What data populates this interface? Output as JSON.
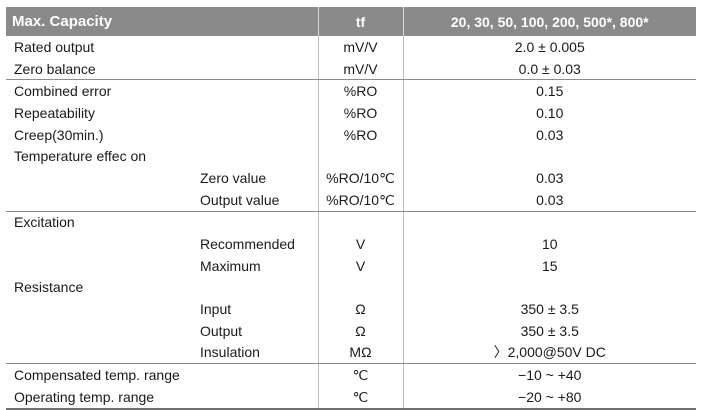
{
  "header": {
    "label": "Max. Capacity",
    "unit": "tf",
    "value": "20, 30, 50, 100, 200, 500*, 800*"
  },
  "rows": [
    {
      "label": "Rated output",
      "unit": "mV/V",
      "value": "2.0 ± 0.005"
    },
    {
      "label": "Zero balance",
      "unit": "mV/V",
      "value": "0.0 ± 0.03"
    },
    {
      "label": "Combined error",
      "unit": "%RO",
      "value": "0.15"
    },
    {
      "label": "Repeatability",
      "unit": "%RO",
      "value": "0.10"
    },
    {
      "label": "Creep(30min.)",
      "unit": "%RO",
      "value": "0.03"
    },
    {
      "label": "Temperature effec on",
      "unit": "",
      "value": ""
    },
    {
      "label": "Zero value",
      "unit": "%RO/10℃",
      "value": "0.03"
    },
    {
      "label": "Output value",
      "unit": "%RO/10℃",
      "value": "0.03"
    },
    {
      "label": "Excitation",
      "unit": "",
      "value": ""
    },
    {
      "label": "Recommended",
      "unit": "V",
      "value": "10"
    },
    {
      "label": "Maximum",
      "unit": "V",
      "value": "15"
    },
    {
      "label": "Resistance",
      "unit": "",
      "value": ""
    },
    {
      "label": "Input",
      "unit": "Ω",
      "value": "350 ± 3.5"
    },
    {
      "label": "Output",
      "unit": "Ω",
      "value": "350 ± 3.5"
    },
    {
      "label": "Insulation",
      "unit": "MΩ",
      "value": "〉2,000@50V DC"
    },
    {
      "label": "Compensated temp. range",
      "unit": "℃",
      "value": "−10 ~ +40"
    },
    {
      "label": "Operating temp. range",
      "unit": "℃",
      "value": "−20 ~ +80"
    }
  ]
}
